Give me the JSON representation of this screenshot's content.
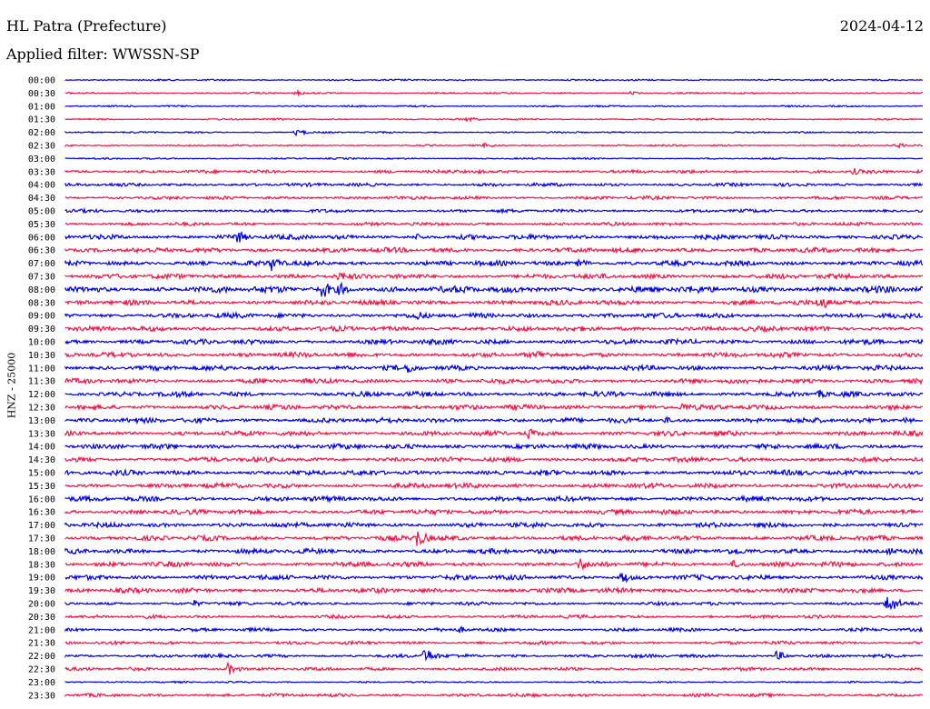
{
  "header": {
    "station": "HL Patra (Prefecture)",
    "date": "2024-04-12",
    "filter": "Applied filter: WWSSN-SP"
  },
  "axis": {
    "ylabel": "HNZ - 25000"
  },
  "colors": {
    "blue": "#0000e0",
    "red": "#ee1546"
  },
  "chart_data": {
    "type": "line",
    "title": "HL Patra (Prefecture)",
    "subtitle": "2024-04-12",
    "ylabel": "HNZ - 25000",
    "tick_labels": [
      "00:00",
      "00:30",
      "01:00",
      "01:30",
      "02:00",
      "02:30",
      "03:00",
      "03:30",
      "04:00",
      "04:30",
      "05:00",
      "05:30",
      "06:00",
      "06:30",
      "07:00",
      "07:30",
      "08:00",
      "08:30",
      "09:00",
      "09:30",
      "10:00",
      "10:30",
      "11:00",
      "11:30",
      "12:00",
      "12:30",
      "13:00",
      "13:30",
      "14:00",
      "14:30",
      "15:00",
      "15:30",
      "16:00",
      "16:30",
      "17:00",
      "17:30",
      "18:00",
      "18:30",
      "19:00",
      "19:30",
      "20:00",
      "20:30",
      "21:00",
      "21:30",
      "22:00",
      "22:30",
      "23:00",
      "23:30"
    ],
    "trace_colors": [
      "blue",
      "red"
    ],
    "noise_level": [
      1,
      1,
      1,
      1,
      1,
      1,
      1,
      2,
      2,
      2,
      2,
      2,
      3,
      3,
      3,
      3,
      4,
      3,
      3,
      3,
      3,
      3,
      3,
      3,
      3,
      3,
      3,
      3,
      3,
      3,
      3,
      3,
      3,
      3,
      3,
      3,
      3,
      3,
      3,
      3,
      2,
      2,
      2,
      2,
      2,
      2,
      1,
      2
    ],
    "events": [
      {
        "trace": 1,
        "pos": 0.27,
        "amp": 3
      },
      {
        "trace": 1,
        "pos": 0.66,
        "amp": 2
      },
      {
        "trace": 3,
        "pos": 0.47,
        "amp": 3
      },
      {
        "trace": 4,
        "pos": 0.27,
        "amp": 4
      },
      {
        "trace": 5,
        "pos": 0.49,
        "amp": 3
      },
      {
        "trace": 5,
        "pos": 0.97,
        "amp": 3
      },
      {
        "trace": 7,
        "pos": 0.48,
        "amp": 3
      },
      {
        "trace": 7,
        "pos": 0.92,
        "amp": 4
      },
      {
        "trace": 12,
        "pos": 0.2,
        "amp": 8
      },
      {
        "trace": 12,
        "pos": 0.41,
        "amp": 4
      },
      {
        "trace": 14,
        "pos": 0.24,
        "amp": 9
      },
      {
        "trace": 14,
        "pos": 0.6,
        "amp": 6
      },
      {
        "trace": 15,
        "pos": 0.32,
        "amp": 6
      },
      {
        "trace": 16,
        "pos": 0.3,
        "amp": 11
      },
      {
        "trace": 16,
        "pos": 0.32,
        "amp": 8
      },
      {
        "trace": 17,
        "pos": 0.88,
        "amp": 10
      },
      {
        "trace": 18,
        "pos": 0.41,
        "amp": 6
      },
      {
        "trace": 21,
        "pos": 0.55,
        "amp": 6
      },
      {
        "trace": 22,
        "pos": 0.4,
        "amp": 7
      },
      {
        "trace": 24,
        "pos": 0.88,
        "amp": 5
      },
      {
        "trace": 25,
        "pos": 0.72,
        "amp": 6
      },
      {
        "trace": 26,
        "pos": 0.7,
        "amp": 4
      },
      {
        "trace": 26,
        "pos": 0.98,
        "amp": 4
      },
      {
        "trace": 27,
        "pos": 0.54,
        "amp": 7
      },
      {
        "trace": 35,
        "pos": 0.41,
        "amp": 11
      },
      {
        "trace": 36,
        "pos": 0.78,
        "amp": 5
      },
      {
        "trace": 36,
        "pos": 0.96,
        "amp": 5
      },
      {
        "trace": 37,
        "pos": 0.6,
        "amp": 8
      },
      {
        "trace": 37,
        "pos": 0.78,
        "amp": 5
      },
      {
        "trace": 38,
        "pos": 0.65,
        "amp": 7
      },
      {
        "trace": 40,
        "pos": 0.15,
        "amp": 4
      },
      {
        "trace": 40,
        "pos": 0.96,
        "amp": 12
      },
      {
        "trace": 42,
        "pos": 0.46,
        "amp": 4
      },
      {
        "trace": 44,
        "pos": 0.42,
        "amp": 9
      },
      {
        "trace": 44,
        "pos": 0.83,
        "amp": 6
      },
      {
        "trace": 45,
        "pos": 0.19,
        "amp": 7
      }
    ]
  }
}
